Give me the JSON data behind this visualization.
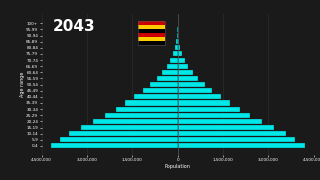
{
  "title_year": "2043",
  "background_color": "#1a1a1a",
  "bar_color": "#00e8e8",
  "bar_edge_color": "#1a1a1a",
  "text_color": "#ffffff",
  "grid_color": "#2e2e2e",
  "xlabel": "Population",
  "ylabel": "Age range",
  "age_groups": [
    "0-4",
    "5-9",
    "10-14",
    "15-19",
    "20-24",
    "25-29",
    "30-34",
    "35-39",
    "40-44",
    "45-49",
    "50-54",
    "55-59",
    "60-64",
    "65-69",
    "70-74",
    "75-79",
    "80-84",
    "85-89",
    "90-94",
    "95-99",
    "100+"
  ],
  "left_values": [
    4200000,
    3900000,
    3600000,
    3200000,
    2800000,
    2400000,
    2050000,
    1750000,
    1450000,
    1150000,
    900000,
    680000,
    500000,
    360000,
    240000,
    150000,
    80000,
    40000,
    15000,
    5000,
    1000
  ],
  "right_values": [
    4200000,
    3900000,
    3600000,
    3200000,
    2800000,
    2400000,
    2050000,
    1750000,
    1450000,
    1150000,
    900000,
    680000,
    500000,
    360000,
    240000,
    150000,
    80000,
    40000,
    15000,
    5000,
    1000
  ],
  "xlim": [
    -4500000,
    4500000
  ],
  "xticks": [
    -4500000,
    -3000000,
    -1500000,
    0,
    1500000,
    3000000,
    4500000
  ],
  "flag_stripes": [
    "#000000",
    "#FFCC00",
    "#CC0000",
    "#000000",
    "#FFCC00",
    "#CC0000"
  ],
  "title_fontsize": 11,
  "axis_fontsize": 3.0,
  "ylabel_fontsize": 3.5,
  "xlabel_fontsize": 3.5
}
